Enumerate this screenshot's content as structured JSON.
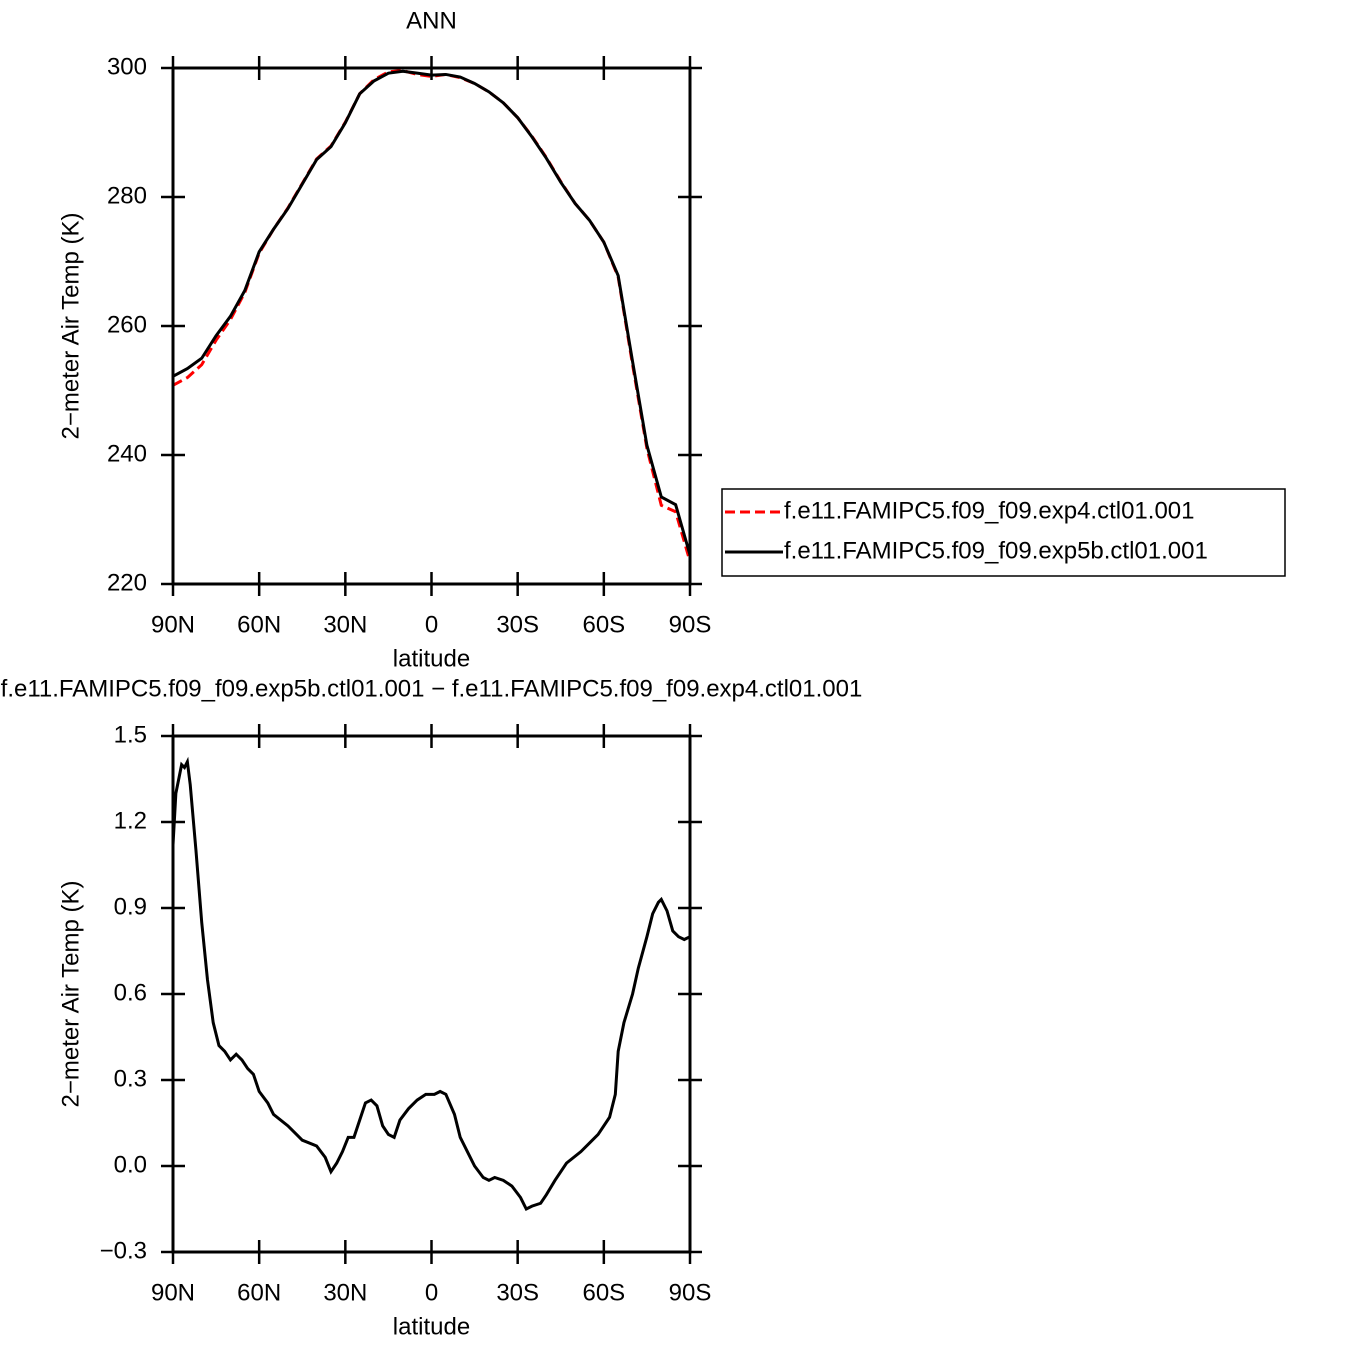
{
  "chart_data": [
    {
      "type": "line",
      "title": "ANN",
      "xlabel": "latitude",
      "ylabel": "2−meter Air Temp (K)",
      "x": [
        90,
        85,
        80,
        75,
        70,
        65,
        60,
        55,
        50,
        45,
        40,
        35,
        30,
        25,
        20,
        15,
        10,
        5,
        0,
        -5,
        -10,
        -15,
        -20,
        -25,
        -30,
        -35,
        -40,
        -45,
        -50,
        -55,
        -60,
        -65,
        -70,
        -75,
        -80,
        -85,
        -90
      ],
      "series": [
        {
          "name": "f.e11.FAMIPC5.f09_f09.exp4.ctl01.001",
          "color": "#ff0000",
          "style": "dashed",
          "values": [
            250.8,
            252.0,
            254.0,
            257.8,
            261.0,
            265.2,
            271.3,
            275.0,
            278.3,
            282.1,
            285.9,
            287.9,
            291.6,
            296.0,
            298.2,
            299.4,
            299.6,
            299.0,
            298.7,
            299.0,
            298.5,
            297.6,
            296.3,
            294.6,
            292.3,
            289.4,
            286.1,
            282.4,
            279.0,
            276.4,
            273.0,
            267.6,
            254.0,
            241.0,
            232.2,
            231.2,
            223.5
          ]
        },
        {
          "name": "f.e11.FAMIPC5.f09_f09.exp5b.ctl01.001",
          "color": "#000000",
          "style": "solid",
          "values": [
            252.2,
            253.4,
            255.0,
            258.5,
            261.5,
            265.5,
            271.5,
            275.0,
            278.2,
            282.0,
            285.8,
            287.8,
            291.5,
            296.0,
            298.0,
            299.2,
            299.5,
            299.2,
            298.9,
            299.0,
            298.6,
            297.6,
            296.3,
            294.6,
            292.3,
            289.3,
            286.0,
            282.3,
            279.0,
            276.4,
            273.0,
            267.8,
            254.5,
            241.5,
            233.5,
            232.3,
            224.5
          ]
        }
      ],
      "xlim": [
        90,
        -90
      ],
      "xticks": [
        {
          "value": 90,
          "label": "90N"
        },
        {
          "value": 60,
          "label": "60N"
        },
        {
          "value": 30,
          "label": "30N"
        },
        0,
        {
          "value": -30,
          "label": "30S"
        },
        {
          "value": -60,
          "label": "60S"
        },
        {
          "value": -90,
          "label": "90S"
        }
      ],
      "ylim": [
        220,
        300
      ],
      "yticks": [
        220,
        240,
        260,
        280,
        300
      ],
      "legend": "right"
    },
    {
      "type": "line",
      "title": "f.e11.FAMIPC5.f09_f09.exp5b.ctl01.001  −  f.e11.FAMIPC5.f09_f09.exp4.ctl01.001",
      "xlabel": "latitude",
      "ylabel": "2−meter Air Temp (K)",
      "x": [
        90,
        89,
        87,
        86,
        85,
        84,
        82,
        80,
        78,
        76,
        74,
        72,
        70,
        68,
        66,
        64,
        62,
        60,
        57,
        55,
        50,
        47,
        45,
        40,
        37,
        35,
        33,
        31,
        29,
        27,
        25,
        23,
        21,
        19,
        17,
        15,
        13,
        11,
        8,
        5,
        2,
        -1,
        -3,
        -5,
        -8,
        -10,
        -13,
        -15,
        -18,
        -20,
        -22,
        -25,
        -28,
        -31,
        -33,
        -35,
        -38,
        -40,
        -43,
        -47,
        -52,
        -55,
        -58,
        -62,
        -64,
        -65,
        -67,
        -70,
        -72,
        -75,
        -77,
        -79,
        -80,
        -82,
        -84,
        -86,
        -88,
        -90
      ],
      "series": [
        {
          "color": "#000000",
          "style": "solid",
          "values": [
            1.12,
            1.3,
            1.4,
            1.39,
            1.41,
            1.33,
            1.1,
            0.85,
            0.65,
            0.5,
            0.42,
            0.4,
            0.37,
            0.39,
            0.37,
            0.34,
            0.32,
            0.26,
            0.22,
            0.18,
            0.14,
            0.11,
            0.09,
            0.07,
            0.03,
            -0.02,
            0.01,
            0.05,
            0.1,
            0.1,
            0.16,
            0.22,
            0.23,
            0.21,
            0.14,
            0.11,
            0.1,
            0.16,
            0.2,
            0.23,
            0.25,
            0.25,
            0.26,
            0.25,
            0.18,
            0.1,
            0.04,
            0.0,
            -0.04,
            -0.05,
            -0.04,
            -0.05,
            -0.07,
            -0.11,
            -0.15,
            -0.14,
            -0.13,
            -0.1,
            -0.05,
            0.01,
            0.05,
            0.08,
            0.11,
            0.17,
            0.25,
            0.4,
            0.5,
            0.6,
            0.69,
            0.8,
            0.88,
            0.92,
            0.93,
            0.89,
            0.82,
            0.8,
            0.79,
            0.8
          ]
        }
      ],
      "xlim": [
        90,
        -90
      ],
      "xticks": [
        {
          "value": 90,
          "label": "90N"
        },
        {
          "value": 60,
          "label": "60N"
        },
        {
          "value": 30,
          "label": "30N"
        },
        0,
        {
          "value": -30,
          "label": "30S"
        },
        {
          "value": -60,
          "label": "60S"
        },
        {
          "value": -90,
          "label": "90S"
        }
      ],
      "ylim": [
        -0.3,
        1.5
      ],
      "yticks": [
        {
          "value": -0.3,
          "label": "−0.3"
        },
        {
          "value": 0,
          "label": "0.0"
        },
        0.3,
        0.6,
        0.9,
        1.2,
        1.5
      ]
    }
  ]
}
